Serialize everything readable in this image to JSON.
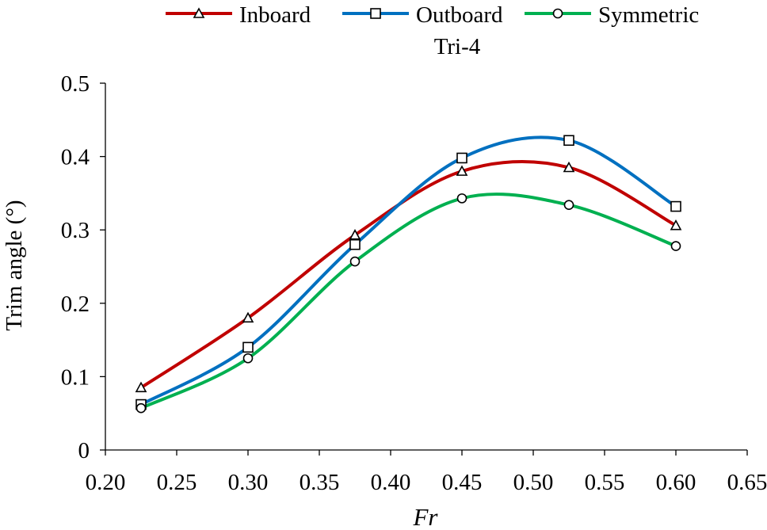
{
  "chart_data": {
    "type": "line",
    "title": "Tri-4",
    "xlabel": "Fr",
    "ylabel": "Trim angle (°)",
    "x": [
      0.225,
      0.3,
      0.375,
      0.45,
      0.525,
      0.6
    ],
    "xlim": [
      0.2,
      0.65
    ],
    "ylim": [
      0,
      0.5
    ],
    "xticks": [
      0.2,
      0.25,
      0.3,
      0.35,
      0.4,
      0.45,
      0.5,
      0.55,
      0.6,
      0.65
    ],
    "xtick_labels": [
      "0.20",
      "0.25",
      "0.30",
      "0.35",
      "0.40",
      "0.45",
      "0.50",
      "0.55",
      "0.60",
      "0.65"
    ],
    "yticks": [
      0,
      0.1,
      0.2,
      0.3,
      0.4,
      0.5
    ],
    "ytick_labels": [
      "0",
      "0.1",
      "0.2",
      "0.3",
      "0.4",
      "0.5"
    ],
    "grid": false,
    "legend_position": "top",
    "series": [
      {
        "name": "Inboard",
        "color": "#c00000",
        "marker": "triangle",
        "values": [
          0.085,
          0.18,
          0.293,
          0.38,
          0.385,
          0.306
        ]
      },
      {
        "name": "Outboard",
        "color": "#0070c0",
        "marker": "square",
        "values": [
          0.062,
          0.14,
          0.28,
          0.398,
          0.422,
          0.332
        ]
      },
      {
        "name": "Symmetric",
        "color": "#00b050",
        "marker": "circle",
        "values": [
          0.057,
          0.125,
          0.257,
          0.343,
          0.334,
          0.278
        ]
      }
    ]
  }
}
